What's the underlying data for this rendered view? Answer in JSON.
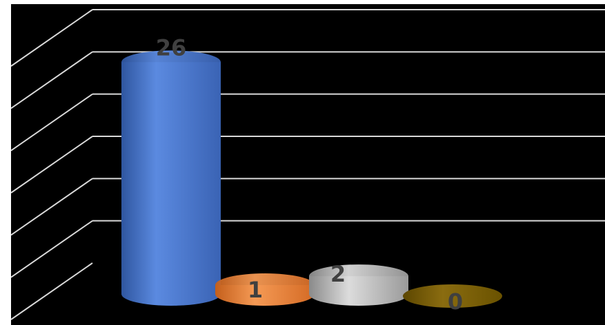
{
  "chart_data": {
    "type": "bar",
    "style": "3d-cylinder",
    "categories": [
      "",
      "",
      "",
      ""
    ],
    "values": [
      26,
      1,
      2,
      0
    ],
    "data_labels": [
      "26",
      "1",
      "2",
      "0"
    ],
    "colors": [
      "#4472C4",
      "#ED7D31",
      "#A5A5A5",
      "#7F6000"
    ],
    "background": "#000000",
    "gridline_color": "#D9D9D9",
    "label_color": "#404040",
    "ylim": [
      0,
      30
    ],
    "grid": true,
    "legend": "none",
    "title": "",
    "xlabel": "",
    "ylabel": ""
  }
}
